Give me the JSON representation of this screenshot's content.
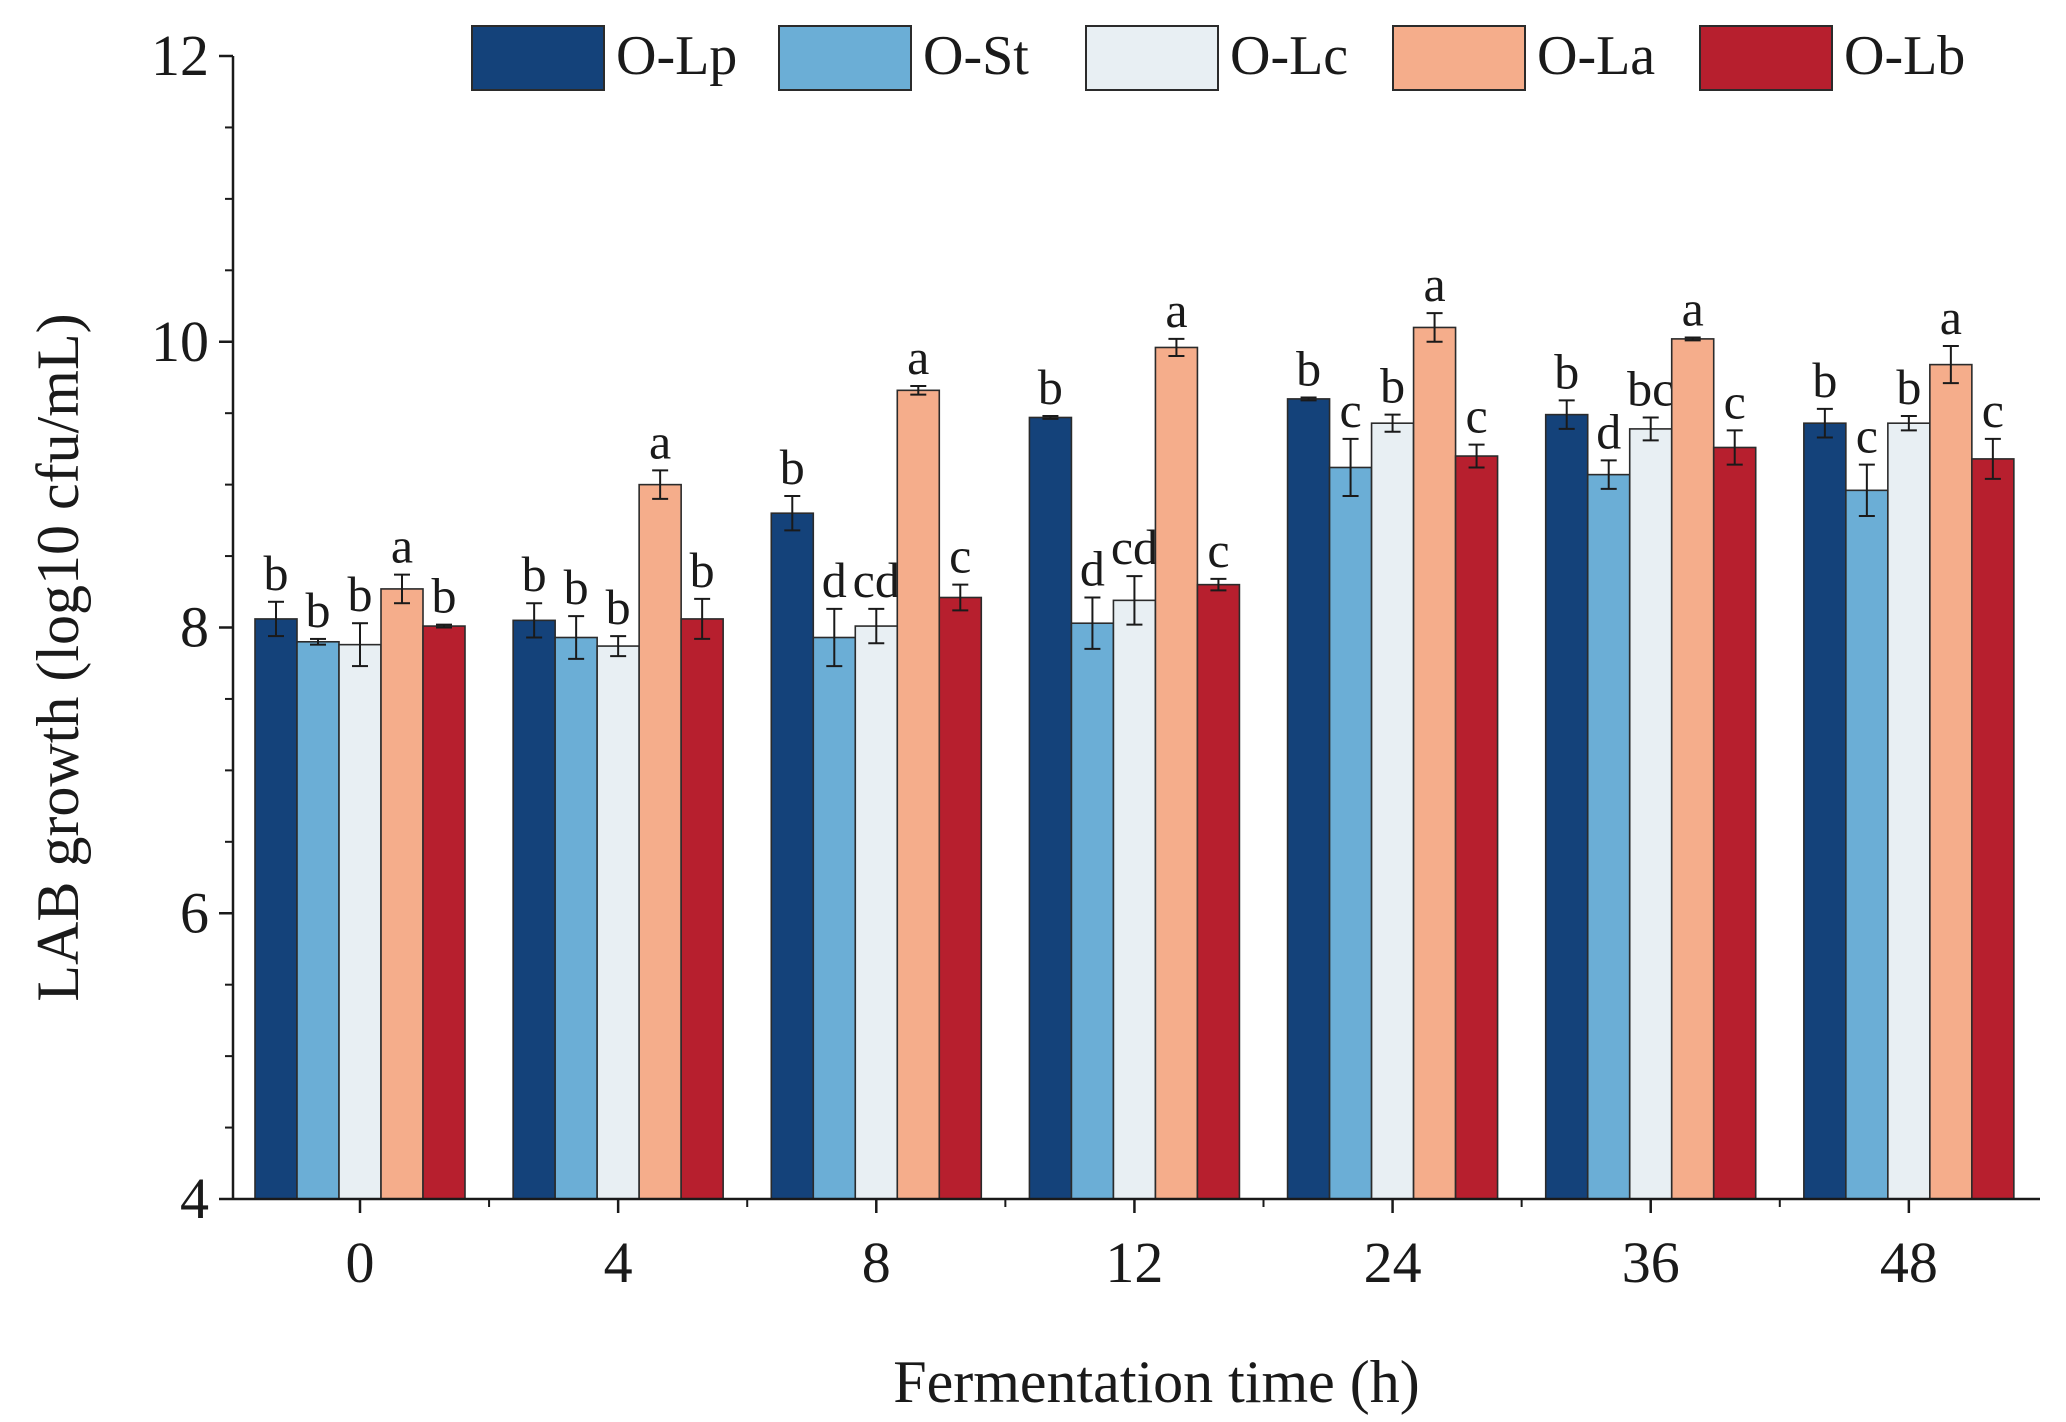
{
  "chart_data": {
    "type": "bar",
    "title": "",
    "xlabel": "Fermentation time (h)",
    "ylabel": "LAB growth (log10 cfu/mL)",
    "ylim": [
      4,
      12
    ],
    "yticks": [
      4,
      6,
      8,
      10,
      12
    ],
    "categories": [
      "0",
      "4",
      "8",
      "12",
      "24",
      "36",
      "48"
    ],
    "legend_position": "top",
    "grid": false,
    "series": [
      {
        "name": "O-Lp",
        "color": "#14427a",
        "values": [
          8.06,
          8.05,
          8.8,
          9.47,
          9.6,
          9.49,
          9.43
        ],
        "errors": [
          0.12,
          0.12,
          0.12,
          0.01,
          0.01,
          0.1,
          0.1
        ],
        "labels": [
          "b",
          "b",
          "b",
          "b",
          "b",
          "b",
          "b"
        ]
      },
      {
        "name": "O-St",
        "color": "#6baed6",
        "values": [
          7.9,
          7.93,
          7.93,
          8.03,
          9.12,
          9.07,
          8.96
        ],
        "errors": [
          0.02,
          0.15,
          0.2,
          0.18,
          0.2,
          0.1,
          0.18
        ],
        "labels": [
          "b",
          "b",
          "d",
          "d",
          "c",
          "d",
          "c"
        ]
      },
      {
        "name": "O-Lc",
        "color": "#e8eff3",
        "values": [
          7.88,
          7.87,
          8.01,
          8.19,
          9.43,
          9.39,
          9.43
        ],
        "errors": [
          0.15,
          0.07,
          0.12,
          0.17,
          0.06,
          0.08,
          0.05
        ],
        "labels": [
          "b",
          "b",
          "cd",
          "cd",
          "b",
          "bc",
          "b"
        ]
      },
      {
        "name": "O-La",
        "color": "#f5ad8b",
        "values": [
          8.27,
          9.0,
          9.66,
          9.96,
          10.1,
          10.02,
          9.84
        ],
        "errors": [
          0.1,
          0.1,
          0.03,
          0.06,
          0.1,
          0.01,
          0.13
        ],
        "labels": [
          "a",
          "a",
          "a",
          "a",
          "a",
          "a",
          "a"
        ]
      },
      {
        "name": "O-Lb",
        "color": "#b71f2e",
        "values": [
          8.01,
          8.06,
          8.21,
          8.3,
          9.2,
          9.26,
          9.18
        ],
        "errors": [
          0.01,
          0.14,
          0.09,
          0.04,
          0.08,
          0.12,
          0.14
        ],
        "labels": [
          "b",
          "b",
          "c",
          "c",
          "c",
          "c",
          "c"
        ]
      }
    ]
  }
}
